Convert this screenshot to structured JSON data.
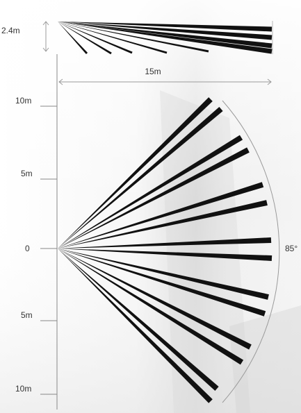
{
  "side_view": {
    "height_label": "2.4m",
    "width_label": "15m"
  },
  "top_view": {
    "axis_labels": [
      "10m",
      "5m",
      "0",
      "5m",
      "10m"
    ],
    "angle_label": "85°"
  },
  "colors": {
    "beam": "#111111",
    "dimension_line": "#9a9a9a",
    "label": "#333333"
  }
}
